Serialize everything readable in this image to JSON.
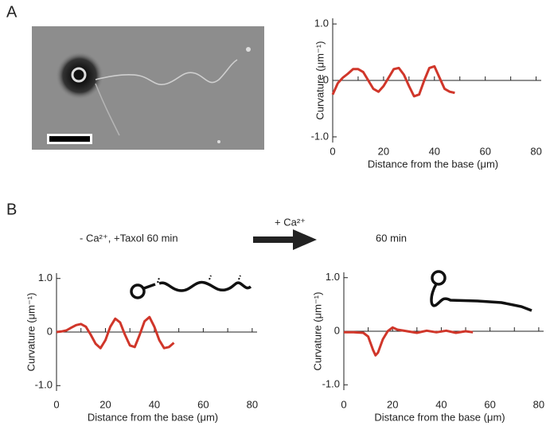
{
  "panel_labels": [
    "A",
    "B"
  ],
  "condition_before": "- Ca²⁺, +Taxol 60 min",
  "treatment": "+ Ca²⁺",
  "condition_after": "60 min",
  "chart_data": [
    {
      "type": "line",
      "xlabel": "Distance from the base (μm)",
      "ylabel": "Curvature (μm⁻¹)",
      "color": "#d0362a",
      "x": [
        0,
        2,
        4,
        6,
        8,
        10,
        12,
        14,
        16,
        18,
        20,
        22,
        24,
        26,
        28,
        30,
        32,
        34,
        36,
        38,
        40,
        42,
        44,
        46,
        48
      ],
      "values": [
        -0.25,
        -0.05,
        0.05,
        0.12,
        0.2,
        0.2,
        0.15,
        0.0,
        -0.15,
        -0.2,
        -0.1,
        0.05,
        0.2,
        0.22,
        0.1,
        -0.1,
        -0.28,
        -0.25,
        0.0,
        0.22,
        0.25,
        0.05,
        -0.15,
        -0.2,
        -0.22
      ],
      "xlim": [
        0,
        82
      ],
      "ylim": [
        -1.1,
        1.1
      ],
      "xticks": [
        0,
        20,
        40,
        60,
        80
      ],
      "xminorticks": [
        10,
        30,
        50,
        70
      ],
      "yticks": [
        {
          "value": -1,
          "label": "-1.0"
        },
        0,
        {
          "value": 1,
          "label": "1.0"
        }
      ]
    },
    {
      "type": "line",
      "xlabel": "Distance from the base (μm)",
      "ylabel": "Curvature (μm⁻¹)",
      "color": "#d0362a",
      "x": [
        0,
        2,
        4,
        6,
        8,
        10,
        12,
        14,
        16,
        18,
        20,
        22,
        24,
        26,
        28,
        30,
        32,
        34,
        36,
        38,
        40,
        42,
        44,
        46,
        48
      ],
      "values": [
        0,
        0.01,
        0.03,
        0.08,
        0.13,
        0.15,
        0.1,
        -0.05,
        -0.22,
        -0.3,
        -0.15,
        0.1,
        0.25,
        0.18,
        -0.05,
        -0.25,
        -0.28,
        -0.05,
        0.2,
        0.28,
        0.1,
        -0.15,
        -0.3,
        -0.28,
        -0.2
      ],
      "xlim": [
        0,
        82
      ],
      "ylim": [
        -1.1,
        1.1
      ],
      "xticks": [
        0,
        20,
        40,
        60,
        80
      ],
      "xminorticks": [
        10,
        30,
        50,
        70
      ],
      "yticks": [
        {
          "value": -1,
          "label": "-1.0"
        },
        0,
        {
          "value": 1,
          "label": "1.0"
        }
      ]
    },
    {
      "type": "line",
      "xlabel": "Distance from the base (μm)",
      "ylabel": "Curvature (μm⁻¹)",
      "color": "#d0362a",
      "x": [
        0,
        4,
        8,
        10,
        12,
        13,
        14,
        16,
        18,
        20,
        22,
        26,
        30,
        34,
        38,
        42,
        46,
        50,
        53
      ],
      "values": [
        -0.02,
        -0.02,
        -0.03,
        -0.1,
        -0.35,
        -0.45,
        -0.4,
        -0.15,
        0.0,
        0.07,
        0.03,
        0.0,
        -0.03,
        0.01,
        -0.02,
        0.01,
        -0.03,
        0.0,
        -0.02
      ],
      "xlim": [
        0,
        82
      ],
      "ylim": [
        -1.1,
        1.1
      ],
      "xticks": [
        0,
        20,
        40,
        60,
        80
      ],
      "xminorticks": [
        10,
        30,
        50,
        70
      ],
      "yticks": [
        {
          "value": -1,
          "label": "-1.0"
        },
        0,
        {
          "value": 1,
          "label": "1.0"
        }
      ]
    }
  ]
}
